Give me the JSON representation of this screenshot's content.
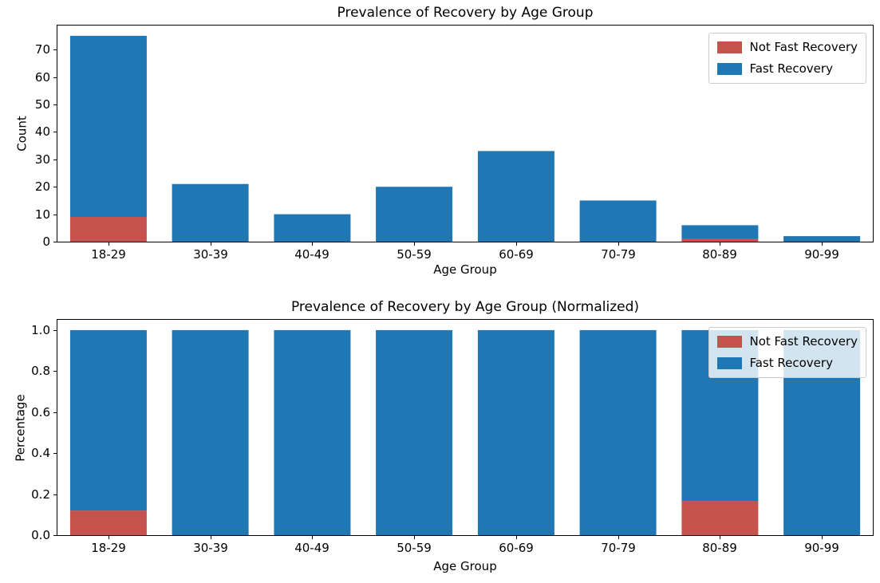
{
  "figure": {
    "background": "#ffffff"
  },
  "palette": {
    "not_fast_recovery": "#c5534d",
    "fast_recovery": "#1f77b4",
    "axis_color": "#000000",
    "legend_border": "#cccccc",
    "text_color": "#000000"
  },
  "chart_data": [
    {
      "type": "bar",
      "stacked": true,
      "title": "Prevalence of Recovery by Age Group",
      "xlabel": "Age Group",
      "ylabel": "Count",
      "categories": [
        "18-29",
        "30-39",
        "40-49",
        "50-59",
        "60-69",
        "70-79",
        "80-89",
        "90-99"
      ],
      "series": [
        {
          "name": "Not Fast Recovery",
          "color": "#c5534d",
          "values": [
            9,
            0,
            0,
            0,
            0,
            0,
            1,
            0
          ]
        },
        {
          "name": "Fast Recovery",
          "color": "#1f77b4",
          "values": [
            66,
            21,
            10,
            20,
            33,
            15,
            5,
            2
          ]
        }
      ],
      "stack_totals": [
        75,
        21,
        10,
        20,
        33,
        15,
        6,
        2
      ],
      "ylim": [
        0,
        78.75
      ],
      "yticks": [
        {
          "value": 0,
          "label": "0"
        },
        {
          "value": 10,
          "label": "10"
        },
        {
          "value": 20,
          "label": "20"
        },
        {
          "value": 30,
          "label": "30"
        },
        {
          "value": 40,
          "label": "40"
        },
        {
          "value": 50,
          "label": "50"
        },
        {
          "value": 60,
          "label": "60"
        },
        {
          "value": 70,
          "label": "70"
        }
      ],
      "grid": false,
      "legend_position": "upper right"
    },
    {
      "type": "bar",
      "stacked": true,
      "title": "Prevalence of Recovery by Age Group (Normalized)",
      "xlabel": "Age Group",
      "ylabel": "Percentage",
      "categories": [
        "18-29",
        "30-39",
        "40-49",
        "50-59",
        "60-69",
        "70-79",
        "80-89",
        "90-99"
      ],
      "series": [
        {
          "name": "Not Fast Recovery",
          "color": "#c5534d",
          "values": [
            0.12,
            0,
            0,
            0,
            0,
            0,
            0.1667,
            0
          ]
        },
        {
          "name": "Fast Recovery",
          "color": "#1f77b4",
          "values": [
            0.88,
            1.0,
            1.0,
            1.0,
            1.0,
            1.0,
            0.8333,
            1.0
          ]
        }
      ],
      "stack_totals": [
        1.0,
        1.0,
        1.0,
        1.0,
        1.0,
        1.0,
        1.0,
        1.0
      ],
      "ylim": [
        0,
        1.05
      ],
      "yticks": [
        {
          "value": 0.0,
          "label": "0.0"
        },
        {
          "value": 0.2,
          "label": "0.2"
        },
        {
          "value": 0.4,
          "label": "0.4"
        },
        {
          "value": 0.6,
          "label": "0.6"
        },
        {
          "value": 0.8,
          "label": "0.8"
        },
        {
          "value": 1.0,
          "label": "1.0"
        }
      ],
      "grid": false,
      "legend_position": "upper right"
    }
  ]
}
